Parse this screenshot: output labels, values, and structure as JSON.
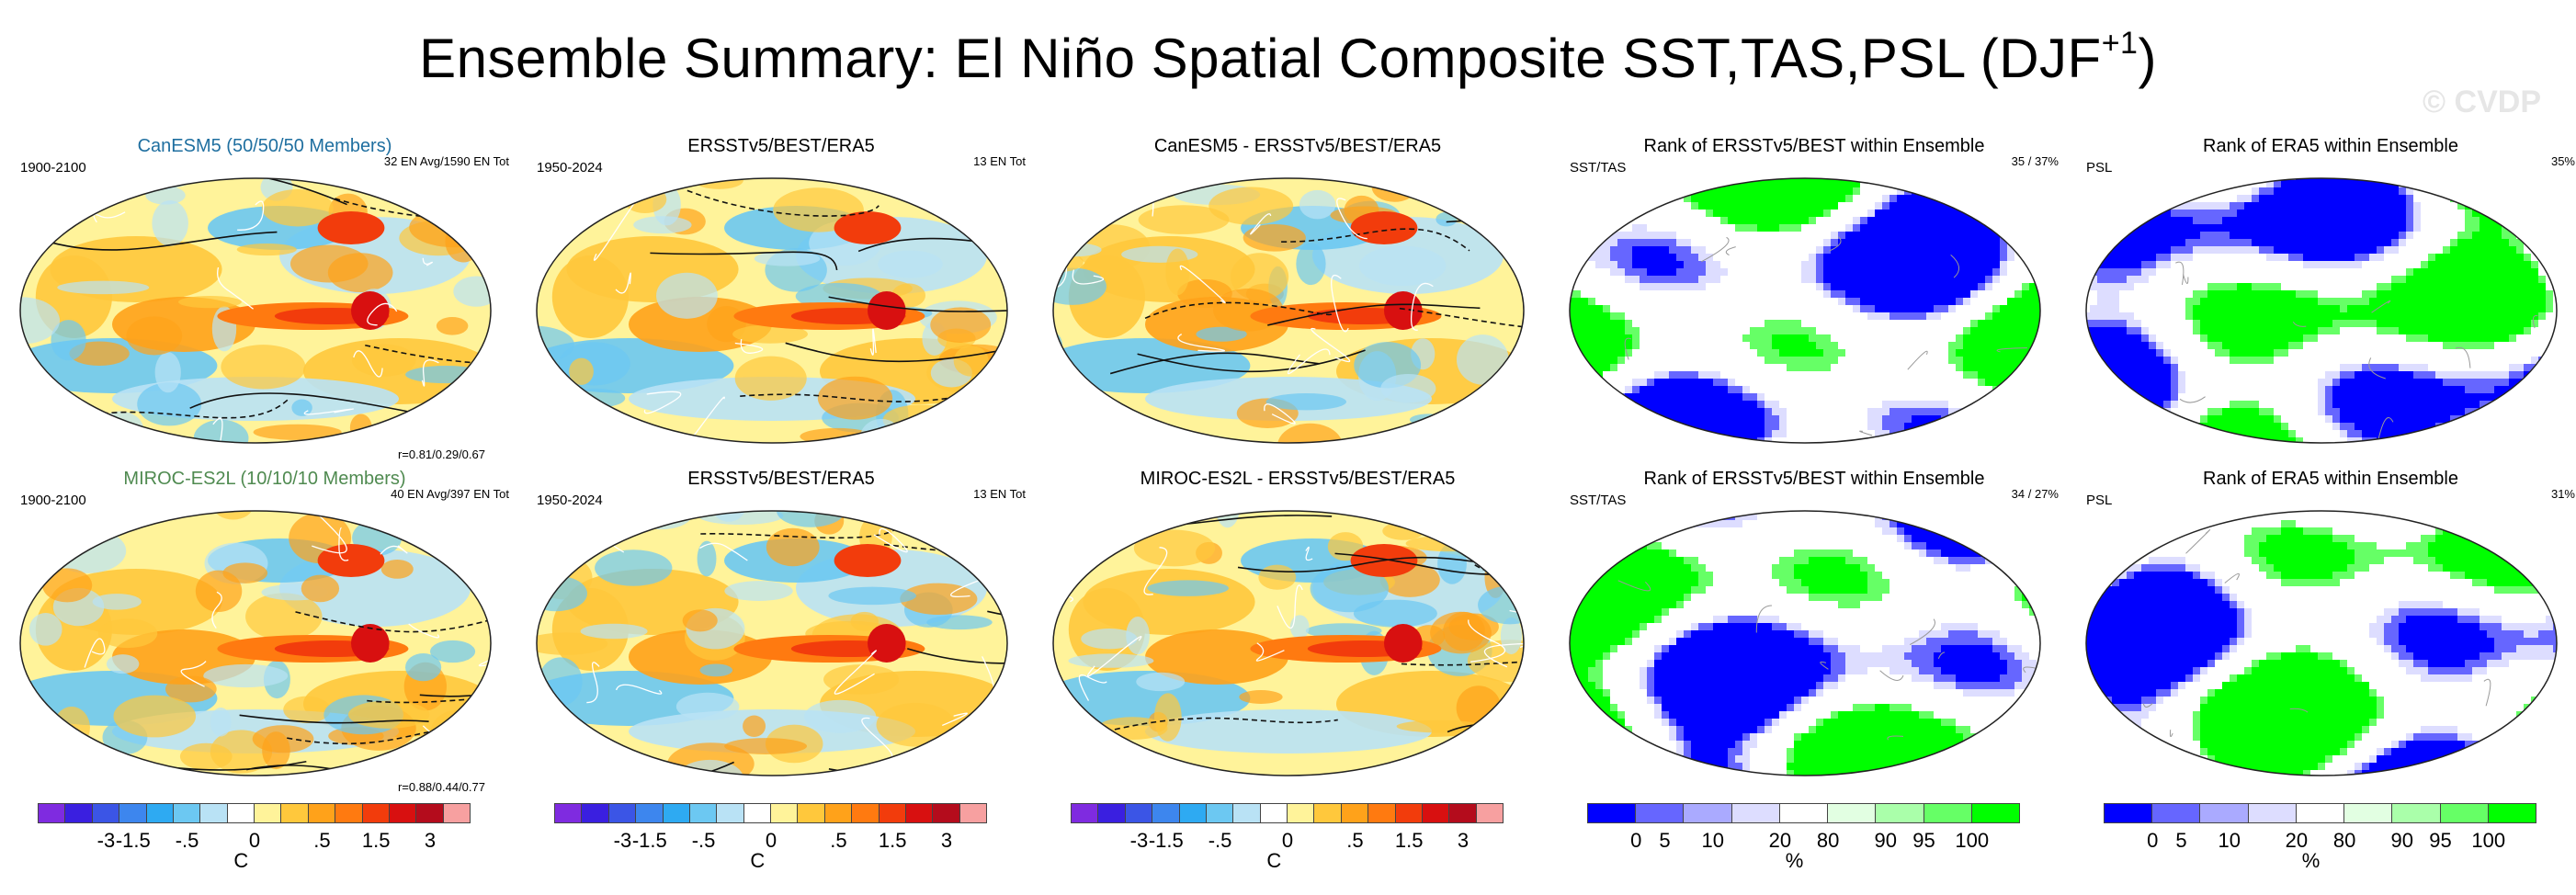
{
  "title": {
    "main": "Ensemble Summary: El Niño Spatial Composite SST,TAS,PSL (DJF",
    "sup": "+1",
    "close": ")"
  },
  "watermark": "© CVDP",
  "colors": {
    "diverging": [
      "#7f2be0",
      "#3a1fe0",
      "#3b55e6",
      "#3d86ee",
      "#2eaaf2",
      "#6cc8f2",
      "#b9e2f5",
      "#ffffff",
      "#fff39a",
      "#ffc83c",
      "#ffa21a",
      "#ff7a10",
      "#f23c0c",
      "#d81010",
      "#b40c1c",
      "#f7a0a0"
    ],
    "rank": [
      "#0000ff",
      "#6666ff",
      "#aaaaff",
      "#ddddff",
      "#ffffff",
      "#e2ffe2",
      "#aaffaa",
      "#66ff66",
      "#00ff00"
    ],
    "contour": "#111111",
    "coast": "#ffffff",
    "title_blue": "#1f6fa0",
    "title_green": "#4f8a50"
  },
  "rows": [
    {
      "panels": [
        {
          "title": "CanESM5 (50/50/50 Members)",
          "left": "1900-2100",
          "right": "32 EN Avg/1590 EN Tot",
          "corr": "r=0.81/0.29/0.67",
          "kind": "sst"
        },
        {
          "title": "ERSSTv5/BEST/ERA5",
          "left": "1950-2024",
          "right": "13 EN Tot",
          "corr": "",
          "kind": "sst"
        },
        {
          "title": "CanESM5 - ERSSTv5/BEST/ERA5",
          "left": "",
          "right": "",
          "corr": "",
          "kind": "sst"
        },
        {
          "title": "Rank of ERSSTv5/BEST within Ensemble",
          "left": "SST/TAS",
          "right": "35 /  37%",
          "corr": "",
          "kind": "rank"
        },
        {
          "title": "Rank of ERA5 within Ensemble",
          "left": "PSL",
          "right": "35%",
          "corr": "",
          "kind": "rank"
        }
      ]
    },
    {
      "panels": [
        {
          "title": "MIROC-ES2L (10/10/10 Members)",
          "left": "1900-2100",
          "right": "40 EN Avg/397 EN Tot",
          "corr": "r=0.88/0.44/0.77",
          "kind": "sst"
        },
        {
          "title": "ERSSTv5/BEST/ERA5",
          "left": "1950-2024",
          "right": "13 EN Tot",
          "corr": "",
          "kind": "sst"
        },
        {
          "title": "MIROC-ES2L - ERSSTv5/BEST/ERA5",
          "left": "",
          "right": "",
          "corr": "",
          "kind": "sst"
        },
        {
          "title": "Rank of ERSSTv5/BEST within Ensemble",
          "left": "SST/TAS",
          "right": "34 /  27%",
          "corr": "",
          "kind": "rank"
        },
        {
          "title": "Rank of ERA5 within Ensemble",
          "left": "PSL",
          "right": "31%",
          "corr": "",
          "kind": "rank"
        }
      ]
    }
  ],
  "colorbars": {
    "diverging": {
      "ticks": [
        "-3",
        "-1.5",
        "-.5",
        "0",
        ".5",
        "1.5",
        "3"
      ],
      "unit": "C"
    },
    "rank": {
      "ticks": [
        "0",
        "5",
        "10",
        "20",
        "80",
        "90",
        "95",
        "100"
      ],
      "unit": "%"
    }
  },
  "chart_data": [
    {
      "type": "heatmap",
      "title": "CanESM5 (50/50/50 Members)",
      "variables": [
        "SST",
        "TAS",
        "PSL"
      ],
      "period": "1900-2100",
      "units": "C",
      "levels": [
        -3,
        -1.5,
        -0.5,
        0,
        0.5,
        1.5,
        3
      ],
      "correlation": [
        0.81,
        0.29,
        0.67
      ]
    },
    {
      "type": "heatmap",
      "title": "ERSSTv5/BEST/ERA5",
      "period": "1950-2024",
      "units": "C"
    },
    {
      "type": "heatmap",
      "title": "CanESM5 - ERSSTv5/BEST/ERA5",
      "units": "C"
    },
    {
      "type": "heatmap",
      "title": "Rank of ERSSTv5/BEST within Ensemble",
      "units": "%",
      "levels": [
        0,
        5,
        10,
        20,
        80,
        90,
        95,
        100
      ]
    },
    {
      "type": "heatmap",
      "title": "Rank of ERA5 within Ensemble",
      "units": "%"
    },
    {
      "type": "heatmap",
      "title": "MIROC-ES2L (10/10/10 Members)",
      "period": "1900-2100",
      "units": "C",
      "correlation": [
        0.88,
        0.44,
        0.77
      ]
    },
    {
      "type": "heatmap",
      "title": "ERSSTv5/BEST/ERA5",
      "period": "1950-2024",
      "units": "C"
    },
    {
      "type": "heatmap",
      "title": "MIROC-ES2L - ERSSTv5/BEST/ERA5",
      "units": "C"
    },
    {
      "type": "heatmap",
      "title": "Rank of ERSSTv5/BEST within Ensemble",
      "units": "%"
    },
    {
      "type": "heatmap",
      "title": "Rank of ERA5 within Ensemble",
      "units": "%"
    }
  ]
}
